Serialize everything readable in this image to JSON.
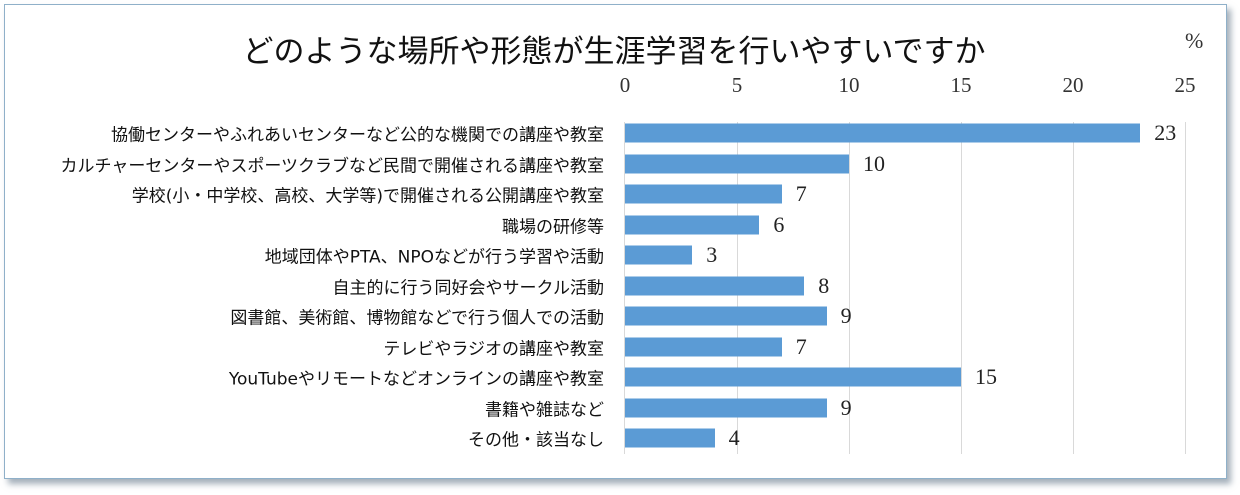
{
  "chart_data": {
    "type": "bar",
    "orientation": "horizontal",
    "title": "どのような場所や形態が生涯学習を行いやすいですか",
    "unit_label": "%",
    "xlabel": "",
    "ylabel": "",
    "xlim": [
      0,
      25
    ],
    "x_ticks": [
      "0",
      "5",
      "10",
      "15",
      "20",
      "25"
    ],
    "grid": true,
    "legend": null,
    "bar_color": "#5b9bd5",
    "categories": [
      "協働センターやふれあいセンターなど公的な機関での講座や教室",
      "カルチャーセンターやスポーツクラブなど民間で開催される講座や教室",
      "学校(小・中学校、高校、大学等)で開催される公開講座や教室",
      "職場の研修等",
      "地域団体やPTA、NPOなどが行う学習や活動",
      "自主的に行う同好会やサークル活動",
      "図書館、美術館、博物館などで行う個人での活動",
      "テレビやラジオの講座や教室",
      "YouTubeやリモートなどオンラインの講座や教室",
      "書籍や雑誌など",
      "その他・該当なし"
    ],
    "values": [
      23,
      10,
      7,
      6,
      3,
      8,
      9,
      7,
      15,
      9,
      4
    ]
  }
}
